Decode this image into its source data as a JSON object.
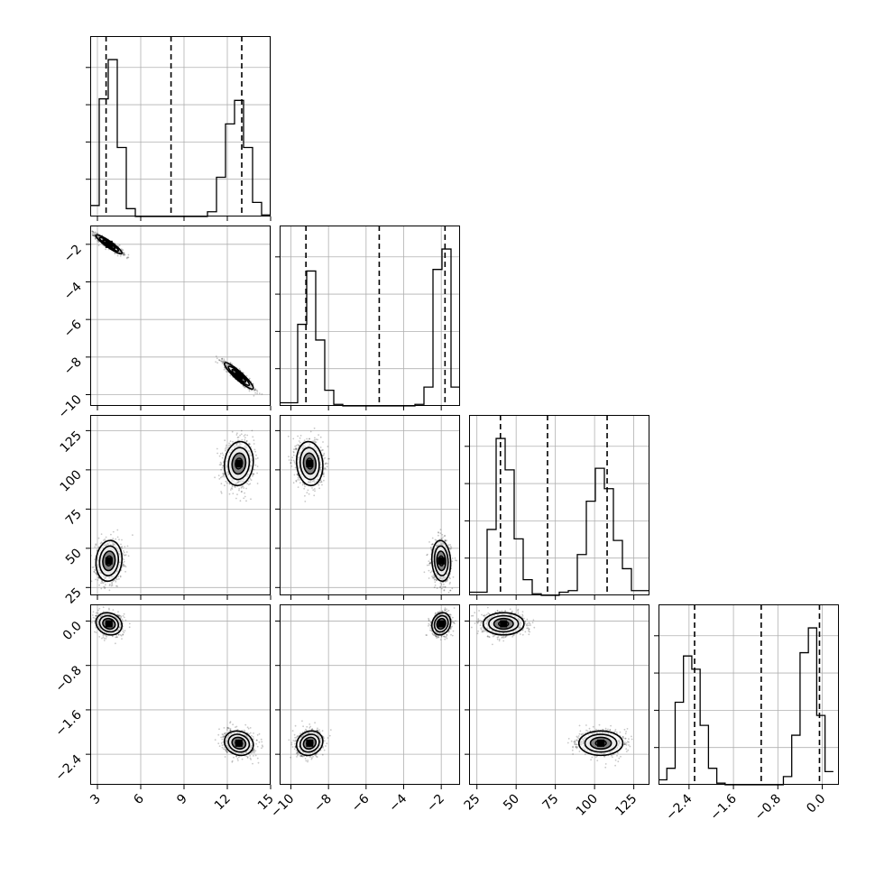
{
  "chart_data": {
    "type": "corner",
    "title": "",
    "parameters": [
      {
        "index": 0,
        "range": [
          2.5,
          15.0
        ],
        "ticks": [
          3,
          6,
          9,
          12,
          15
        ],
        "tick_labels": [
          "3",
          "6",
          "9",
          "12",
          "15"
        ],
        "quantiles": [
          3.6,
          8.1,
          13.0
        ],
        "hist_edges": [
          2.5,
          3.125,
          3.75,
          4.375,
          5.0,
          5.625,
          6.25,
          6.875,
          7.5,
          8.125,
          8.75,
          9.375,
          10.0,
          10.625,
          11.25,
          11.875,
          12.5,
          13.125,
          13.75,
          14.375,
          15.0
        ],
        "hist_density": [
          0.07,
          0.75,
          1.0,
          0.44,
          0.05,
          0,
          0,
          0,
          0,
          0,
          0,
          0,
          0,
          0.03,
          0.25,
          0.59,
          0.74,
          0.44,
          0.09,
          0.01
        ]
      },
      {
        "index": 1,
        "range": [
          -10.6,
          -1.0
        ],
        "ticks": [
          -10,
          -8,
          -6,
          -4,
          -2
        ],
        "tick_labels": [
          "−10",
          "−8",
          "−6",
          "−4",
          "−2"
        ],
        "quantiles": [
          -9.2,
          -5.3,
          -1.8
        ],
        "hist_edges": [
          -10.6,
          -10.12,
          -9.64,
          -9.16,
          -8.68,
          -8.2,
          -7.72,
          -7.24,
          -6.76,
          -6.28,
          -5.8,
          -5.32,
          -4.84,
          -4.36,
          -3.88,
          -3.4,
          -2.92,
          -2.44,
          -1.96,
          -1.48,
          -1.0
        ],
        "hist_density": [
          0.02,
          0.02,
          0.52,
          0.86,
          0.42,
          0.1,
          0.01,
          0,
          0,
          0,
          0,
          0,
          0,
          0,
          0,
          0.01,
          0.12,
          0.87,
          1.0,
          0.12
        ]
      },
      {
        "index": 2,
        "range": [
          20.0,
          135.0
        ],
        "ticks": [
          25,
          50,
          75,
          100,
          125
        ],
        "tick_labels": [
          "25",
          "50",
          "75",
          "100",
          "125"
        ],
        "quantiles": [
          40.0,
          70.0,
          108.0
        ],
        "hist_edges": [
          20.0,
          25.75,
          31.5,
          37.25,
          43.0,
          48.75,
          54.5,
          60.25,
          66.0,
          71.75,
          77.5,
          83.25,
          89.0,
          94.75,
          100.5,
          106.25,
          112.0,
          117.75,
          123.5,
          129.25,
          135.0
        ],
        "hist_density": [
          0.02,
          0.02,
          0.42,
          1.0,
          0.8,
          0.36,
          0.1,
          0.01,
          0,
          0,
          0.02,
          0.03,
          0.26,
          0.6,
          0.81,
          0.68,
          0.35,
          0.17,
          0.03,
          0.03
        ]
      },
      {
        "index": 3,
        "range": [
          -2.95,
          0.3
        ],
        "ticks": [
          -2.4,
          -1.6,
          -0.8,
          0.0
        ],
        "tick_labels": [
          "−2.4",
          "−1.6",
          "−0.8",
          "0.0"
        ],
        "quantiles": [
          -2.3,
          -1.1,
          -0.05
        ],
        "hist_edges": [
          -2.95,
          -2.8,
          -2.65,
          -2.5,
          -2.35,
          -2.2,
          -2.05,
          -1.9,
          -1.75,
          -1.6,
          -1.45,
          -1.3,
          -1.15,
          -1.0,
          -0.85,
          -0.7,
          -0.55,
          -0.4,
          -0.25,
          -0.1,
          0.05,
          0.2
        ],
        "hist_density": [
          0.03,
          0.1,
          0.5,
          0.78,
          0.7,
          0.36,
          0.1,
          0.01,
          0,
          0,
          0,
          0,
          0,
          0,
          0,
          0.05,
          0.3,
          0.8,
          0.95,
          0.42,
          0.08
        ]
      }
    ],
    "modes": [
      {
        "means": [
          3.8,
          -2.0,
          42.0,
          -0.05
        ],
        "sds": [
          0.45,
          0.25,
          6.5,
          0.1
        ]
      },
      {
        "means": [
          12.8,
          -9.0,
          104.0,
          -2.2
        ],
        "sds": [
          0.5,
          0.35,
          7.0,
          0.11
        ]
      }
    ],
    "correlations": [
      {
        "pair": [
          0,
          1
        ],
        "value": -0.92
      },
      {
        "pair": [
          0,
          2
        ],
        "value": 0.1
      },
      {
        "pair": [
          0,
          3
        ],
        "value": -0.15
      },
      {
        "pair": [
          1,
          2
        ],
        "value": -0.1
      },
      {
        "pair": [
          1,
          3
        ],
        "value": 0.15
      },
      {
        "pair": [
          2,
          3
        ],
        "value": 0.0
      }
    ],
    "contour_levels": 3,
    "grid": true,
    "colors": {
      "line": "#000000",
      "grid": "#b0b0b0",
      "points": "#000000",
      "fill_inner": "#3a3a3a",
      "fill_mid": "#7a7a7a",
      "fill_outer": "#ececec"
    }
  }
}
